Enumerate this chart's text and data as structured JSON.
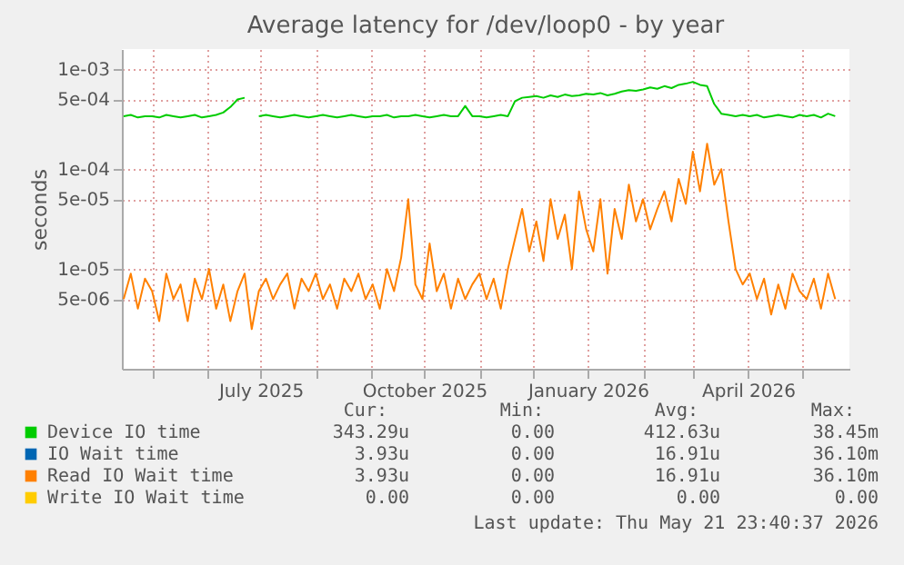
{
  "chart_data": {
    "type": "line",
    "title": "Average latency for /dev/loop0 - by year",
    "ylabel": "seconds",
    "log": true,
    "grid": true,
    "legend": "bottom",
    "marker": "none",
    "line_style": "solid",
    "x": [
      "2025-04-15",
      "2025-04-19",
      "2025-04-23",
      "2025-04-27",
      "2025-05-01",
      "2025-05-05",
      "2025-05-09",
      "2025-05-13",
      "2025-05-17",
      "2025-05-21",
      "2025-05-25",
      "2025-05-29",
      "2025-06-02",
      "2025-06-06",
      "2025-06-10",
      "2025-06-14",
      "2025-06-18",
      "2025-06-22",
      "2025-06-26",
      "2025-06-30",
      "2025-07-04",
      "2025-07-08",
      "2025-07-12",
      "2025-07-16",
      "2025-07-20",
      "2025-07-24",
      "2025-07-28",
      "2025-08-01",
      "2025-08-05",
      "2025-08-09",
      "2025-08-13",
      "2025-08-17",
      "2025-08-21",
      "2025-08-25",
      "2025-08-29",
      "2025-09-02",
      "2025-09-06",
      "2025-09-10",
      "2025-09-14",
      "2025-09-18",
      "2025-09-22",
      "2025-09-26",
      "2025-09-30",
      "2025-10-04",
      "2025-10-08",
      "2025-10-12",
      "2025-10-16",
      "2025-10-20",
      "2025-10-24",
      "2025-10-28",
      "2025-11-01",
      "2025-11-05",
      "2025-11-09",
      "2025-11-13",
      "2025-11-17",
      "2025-11-21",
      "2025-11-25",
      "2025-11-29",
      "2025-12-03",
      "2025-12-07",
      "2025-12-11",
      "2025-12-15",
      "2025-12-19",
      "2025-12-23",
      "2025-12-27",
      "2025-12-31",
      "2026-01-04",
      "2026-01-08",
      "2026-01-12",
      "2026-01-16",
      "2026-01-20",
      "2026-01-24",
      "2026-01-28",
      "2026-02-01",
      "2026-02-05",
      "2026-02-09",
      "2026-02-13",
      "2026-02-17",
      "2026-02-21",
      "2026-02-25",
      "2026-03-01",
      "2026-03-05",
      "2026-03-09",
      "2026-03-13",
      "2026-03-17",
      "2026-03-21",
      "2026-03-25",
      "2026-03-29",
      "2026-04-02",
      "2026-04-06",
      "2026-04-10",
      "2026-04-14",
      "2026-04-18",
      "2026-04-22",
      "2026-04-26",
      "2026-04-30",
      "2026-05-04",
      "2026-05-08",
      "2026-05-12",
      "2026-05-16",
      "2026-05-20"
    ],
    "series": [
      {
        "name": "Device IO time",
        "color": "#00cc00",
        "values": [
          0.00034,
          0.00035,
          0.00033,
          0.00034,
          0.00034,
          0.00033,
          0.00035,
          0.00034,
          0.00033,
          0.00034,
          0.00035,
          0.00033,
          0.00034,
          0.00035,
          0.00037,
          0.00042,
          0.0005,
          0.00052,
          null,
          0.00034,
          0.00035,
          0.00034,
          0.00033,
          0.00034,
          0.00035,
          0.00034,
          0.00033,
          0.00034,
          0.00035,
          0.00034,
          0.00033,
          0.00034,
          0.00035,
          0.00034,
          0.00033,
          0.00034,
          0.00034,
          0.00035,
          0.00033,
          0.00034,
          0.00034,
          0.00035,
          0.00034,
          0.00033,
          0.00034,
          0.00035,
          0.00034,
          0.00034,
          0.00043,
          0.00034,
          0.00034,
          0.00033,
          0.00034,
          0.00035,
          0.00034,
          0.00048,
          0.00052,
          0.00053,
          0.00054,
          0.00052,
          0.00055,
          0.00053,
          0.00056,
          0.00054,
          0.00055,
          0.00057,
          0.00056,
          0.00058,
          0.00055,
          0.00057,
          0.0006,
          0.00062,
          0.00061,
          0.00063,
          0.00066,
          0.00064,
          0.00068,
          0.00065,
          0.0007,
          0.00072,
          0.00075,
          0.0007,
          0.00068,
          0.00045,
          0.00036,
          0.00035,
          0.00034,
          0.00035,
          0.00034,
          0.00035,
          0.00033,
          0.00034,
          0.00035,
          0.00034,
          0.00033,
          0.00035,
          0.00034,
          0.00035,
          0.00033,
          0.00036,
          0.00034
        ]
      },
      {
        "name": "IO Wait time",
        "color": "#0066b3",
        "values": [
          null,
          null,
          null,
          null,
          null,
          null,
          null,
          null,
          null,
          null,
          null,
          null,
          null,
          null,
          null,
          null,
          null,
          null,
          null,
          null,
          null,
          null,
          null,
          null,
          null,
          null,
          null,
          null,
          null,
          null,
          null,
          null,
          null,
          null,
          null,
          null,
          null,
          null,
          null,
          null,
          null,
          null,
          null,
          null,
          null,
          null,
          null,
          null,
          null,
          null,
          null,
          null,
          null,
          null,
          null,
          null,
          null,
          null,
          null,
          null,
          null,
          null,
          null,
          null,
          null,
          null,
          null,
          null,
          null,
          null,
          null,
          null,
          null,
          null,
          null,
          null,
          null,
          null,
          null,
          null,
          null,
          null,
          null,
          null,
          null,
          null,
          null,
          null,
          null,
          null,
          null,
          null,
          null,
          null,
          null,
          null,
          null,
          null,
          null,
          null,
          null
        ]
      },
      {
        "name": "Read IO Wait time",
        "color": "#ff8000",
        "values": [
          5e-06,
          9e-06,
          4e-06,
          8e-06,
          6e-06,
          3e-06,
          9e-06,
          5e-06,
          7e-06,
          3e-06,
          8e-06,
          5e-06,
          1e-05,
          4e-06,
          7e-06,
          3e-06,
          6e-06,
          9e-06,
          2.5e-06,
          6e-06,
          8e-06,
          5e-06,
          7e-06,
          9e-06,
          4e-06,
          8e-06,
          6e-06,
          9e-06,
          5e-06,
          7e-06,
          4e-06,
          8e-06,
          6e-06,
          9e-06,
          5e-06,
          7e-06,
          4e-06,
          1e-05,
          6e-06,
          1.3e-05,
          5e-05,
          7e-06,
          5e-06,
          1.8e-05,
          6e-06,
          9e-06,
          4e-06,
          8e-06,
          5e-06,
          7e-06,
          9e-06,
          5e-06,
          8e-06,
          4e-06,
          1e-05,
          2e-05,
          4e-05,
          1.5e-05,
          3e-05,
          1.2e-05,
          5e-05,
          2e-05,
          3.5e-05,
          1e-05,
          6e-05,
          2.5e-05,
          1.5e-05,
          5e-05,
          9e-06,
          4e-05,
          2e-05,
          7e-05,
          3e-05,
          5e-05,
          2.5e-05,
          4e-05,
          6e-05,
          3e-05,
          8e-05,
          4.5e-05,
          0.00015,
          6e-05,
          0.00018,
          7e-05,
          0.0001,
          3e-05,
          1e-05,
          7e-06,
          9e-06,
          5e-06,
          8e-06,
          3.5e-06,
          7e-06,
          4e-06,
          9e-06,
          6e-06,
          5e-06,
          8e-06,
          4e-06,
          9e-06,
          5e-06
        ]
      },
      {
        "name": "Write IO Wait time",
        "color": "#ffcc00",
        "values": [
          null,
          null,
          null,
          null,
          null,
          null,
          null,
          null,
          null,
          null,
          null,
          null,
          null,
          null,
          null,
          null,
          null,
          null,
          null,
          null,
          null,
          null,
          null,
          null,
          null,
          null,
          null,
          null,
          null,
          null,
          null,
          null,
          null,
          null,
          null,
          null,
          null,
          null,
          null,
          null,
          null,
          null,
          null,
          null,
          null,
          null,
          null,
          null,
          null,
          null,
          null,
          null,
          null,
          null,
          null,
          null,
          null,
          null,
          null,
          null,
          null,
          null,
          null,
          null,
          null,
          null,
          null,
          null,
          null,
          null,
          null,
          null,
          null,
          null,
          null,
          null,
          null,
          null,
          null,
          null,
          null,
          null,
          null,
          null,
          null,
          null,
          null,
          null,
          null,
          null,
          null,
          null,
          null,
          null,
          null,
          null,
          null,
          null,
          null,
          null,
          null
        ]
      }
    ],
    "xlim": [
      "2025-04-14",
      "2026-05-28"
    ],
    "xticks": [
      {
        "value": "2025-05-01",
        "label": null
      },
      {
        "value": "2025-06-01",
        "label": null
      },
      {
        "value": "2025-07-01",
        "label": "July 2025"
      },
      {
        "value": "2025-08-01",
        "label": null
      },
      {
        "value": "2025-09-01",
        "label": null
      },
      {
        "value": "2025-10-01",
        "label": "October 2025"
      },
      {
        "value": "2025-11-01",
        "label": null
      },
      {
        "value": "2025-12-01",
        "label": null
      },
      {
        "value": "2026-01-01",
        "label": "January 2026"
      },
      {
        "value": "2026-02-01",
        "label": null
      },
      {
        "value": "2026-03-01",
        "label": null
      },
      {
        "value": "2026-04-01",
        "label": "April 2026"
      },
      {
        "value": "2026-05-01",
        "label": null
      }
    ],
    "ylim": [
      1e-06,
      0.0016
    ],
    "yticks": [
      {
        "value": 5e-06,
        "label": "5e-06"
      },
      {
        "value": 1e-05,
        "label": "1e-05"
      },
      {
        "value": 5e-05,
        "label": "5e-05"
      },
      {
        "value": 0.0001,
        "label": "1e-04"
      },
      {
        "value": 0.0005,
        "label": "5e-04"
      },
      {
        "value": 0.001,
        "label": "1e-03"
      }
    ],
    "annotations": [
      "Cur:",
      "Min:",
      "Avg:",
      "Max:",
      "343.29u",
      "0.00",
      "412.63u",
      "38.45m",
      "3.93u",
      "0.00",
      "16.91u",
      "36.10m",
      "3.93u",
      "0.00",
      "16.91u",
      "36.10m",
      "0.00",
      "0.00",
      "0.00",
      "0.00",
      "Last update: Thu May 21 23:40:37 2026"
    ]
  }
}
